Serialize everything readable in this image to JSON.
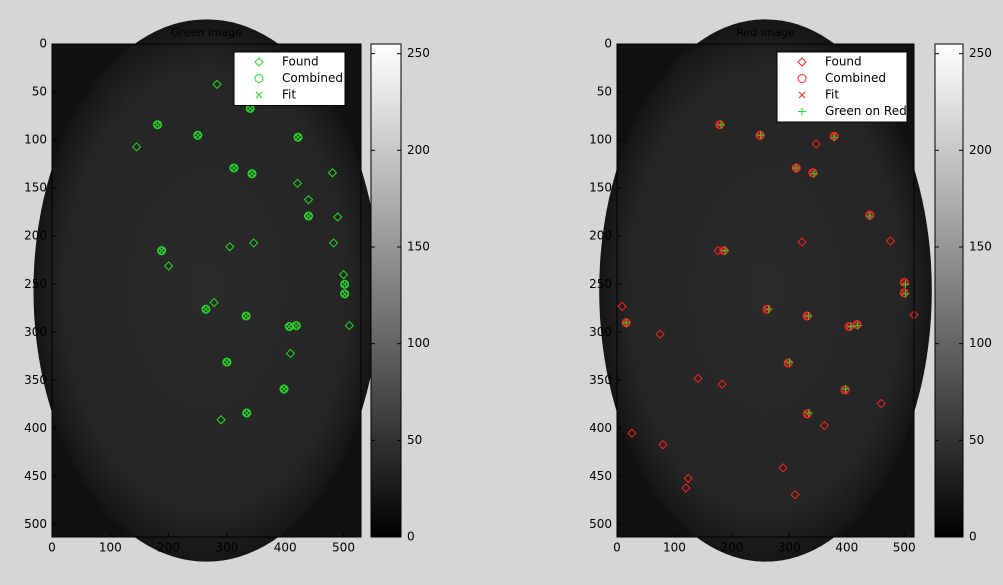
{
  "chart_data": [
    {
      "type": "scatter",
      "title": "Green image",
      "y_reversed": true,
      "xlim": [
        0,
        530
      ],
      "ylim": [
        0,
        513
      ],
      "xticks": [
        0,
        100,
        200,
        300,
        400,
        500
      ],
      "yticks": [
        0,
        50,
        100,
        150,
        200,
        250,
        300,
        350,
        400,
        450,
        500
      ],
      "colorbar": {
        "lim": [
          0,
          255
        ],
        "ticks": [
          0,
          50,
          100,
          150,
          200,
          250
        ]
      },
      "series": [
        {
          "name": "Found",
          "color": "#22dd22",
          "marker": "diamond",
          "x": [
            283,
            340,
            181,
            145,
            250,
            422,
            312,
            343,
            421,
            481,
            440,
            440,
            490,
            188,
            305,
            346,
            483,
            200,
            500,
            502,
            502,
            510,
            278,
            264,
            333,
            407,
            419,
            409,
            300,
            398,
            334,
            290
          ],
          "y": [
            42,
            67,
            84,
            107,
            95,
            97,
            129,
            135,
            145,
            134,
            162,
            179,
            180,
            215,
            211,
            207,
            207,
            231,
            240,
            250,
            260,
            293,
            269,
            276,
            283,
            294,
            293,
            322,
            331,
            359,
            384,
            391
          ]
        },
        {
          "name": "Combined",
          "color": "#22dd22",
          "marker": "circle",
          "x": [
            340,
            181,
            250,
            422,
            312,
            343,
            440,
            188,
            502,
            502,
            264,
            333,
            407,
            419,
            300,
            398,
            334
          ],
          "y": [
            67,
            84,
            95,
            97,
            129,
            135,
            179,
            215,
            250,
            260,
            276,
            283,
            294,
            293,
            331,
            359,
            384
          ]
        },
        {
          "name": "Fit",
          "color": "#22dd22",
          "marker": "x",
          "x": [
            340,
            181,
            250,
            422,
            312,
            343,
            440,
            188,
            502,
            502,
            264,
            333,
            407,
            419,
            300,
            398,
            334
          ],
          "y": [
            67,
            84,
            95,
            97,
            129,
            135,
            179,
            215,
            250,
            260,
            276,
            283,
            294,
            293,
            331,
            359,
            384
          ]
        }
      ]
    },
    {
      "type": "scatter",
      "title": "Red image",
      "y_reversed": true,
      "xlim": [
        0,
        517
      ],
      "ylim": [
        0,
        513
      ],
      "xticks": [
        0,
        100,
        200,
        300,
        400,
        500
      ],
      "yticks": [
        0,
        50,
        100,
        150,
        200,
        250,
        300,
        350,
        400,
        450,
        500
      ],
      "colorbar": {
        "lim": [
          0,
          255
        ],
        "ticks": [
          0,
          50,
          100,
          150,
          200,
          250
        ]
      },
      "series": [
        {
          "name": "Found",
          "color": "#ff2020",
          "marker": "diamond",
          "x": [
            179,
            249,
            378,
            347,
            312,
            341,
            440,
            476,
            322,
            176,
            186,
            500,
            500,
            261,
            331,
            9,
            16,
            517,
            75,
            404,
            418,
            298,
            141,
            183,
            397,
            331,
            460,
            361,
            26,
            80,
            289,
            124,
            120,
            310
          ],
          "y": [
            84,
            95,
            96,
            104,
            129,
            134,
            178,
            205,
            206,
            215,
            215,
            248,
            259,
            276,
            283,
            273,
            290,
            282,
            302,
            294,
            292,
            332,
            348,
            354,
            360,
            385,
            374,
            397,
            405,
            417,
            441,
            452,
            462,
            469
          ]
        },
        {
          "name": "Combined",
          "color": "#ff2020",
          "marker": "circle",
          "x": [
            179,
            249,
            378,
            312,
            341,
            440,
            186,
            500,
            500,
            261,
            331,
            16,
            404,
            418,
            298,
            397,
            331
          ],
          "y": [
            84,
            95,
            96,
            129,
            134,
            178,
            215,
            248,
            259,
            276,
            283,
            290,
            294,
            292,
            332,
            360,
            385
          ]
        },
        {
          "name": "Fit",
          "color": "#ff2020",
          "marker": "x",
          "x": [
            179,
            249,
            378,
            312,
            341,
            440,
            186,
            500,
            500,
            261,
            331,
            16,
            404,
            418,
            298,
            397,
            331
          ],
          "y": [
            84,
            95,
            96,
            129,
            134,
            178,
            215,
            248,
            259,
            276,
            283,
            290,
            294,
            292,
            332,
            360,
            385
          ]
        },
        {
          "name": "Green on Red",
          "color": "#22dd22",
          "marker": "plus",
          "x": [
            181,
            250,
            378,
            312,
            343,
            440,
            188,
            502,
            502,
            264,
            333,
            16,
            407,
            419,
            300,
            398,
            334
          ],
          "y": [
            84,
            95,
            97,
            129,
            135,
            179,
            215,
            250,
            260,
            276,
            283,
            290,
            294,
            293,
            331,
            359,
            384
          ]
        }
      ]
    }
  ]
}
